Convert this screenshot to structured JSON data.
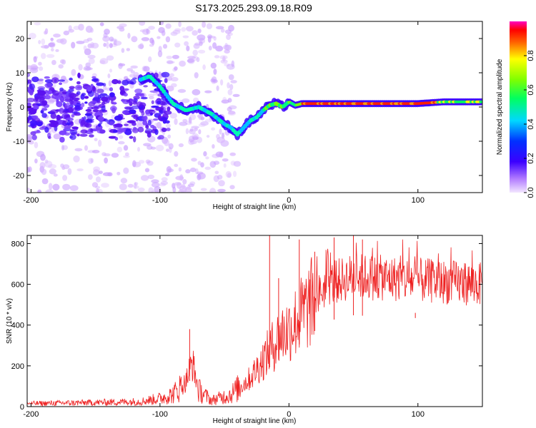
{
  "title": "S173.2025.293.09.18.R09",
  "chart_data": [
    {
      "type": "heatmap",
      "name": "spectrogram",
      "xlabel": "Height of straight line (km)",
      "ylabel": "Frequency (Hz)",
      "xlim": [
        -203,
        150
      ],
      "ylim": [
        -25,
        25
      ],
      "xticks": [
        -200,
        -100,
        0,
        100
      ],
      "yticks": [
        -20,
        -10,
        0,
        10,
        20
      ],
      "colorbar": {
        "label": "Normalized spectral amplitude",
        "range": [
          0,
          1
        ],
        "ticks": [
          0.0,
          0.2,
          0.4,
          0.6,
          0.8
        ],
        "tick_labels": [
          "0.0",
          "0.2",
          "0.4",
          "0.6",
          "0.8"
        ]
      },
      "ridge": {
        "x": [
          -115,
          -108,
          -100,
          -90,
          -80,
          -70,
          -60,
          -50,
          -45,
          -40,
          -35,
          -30,
          -25,
          -20,
          -15,
          -10,
          -5,
          0,
          5,
          10,
          50,
          100,
          120,
          150
        ],
        "y": [
          8,
          9,
          6,
          1,
          -1,
          0,
          -2,
          -5,
          -6,
          -8,
          -6,
          -4,
          -3,
          -1,
          0.5,
          1,
          0,
          1.5,
          0.5,
          1,
          1,
          1,
          1.5,
          1.5
        ]
      },
      "noise_region_x": [
        -203,
        -60
      ],
      "colors": {
        "high": "#ff0000",
        "mid": "#00ff00",
        "low": "#0000ff",
        "floor": "#d9b8ff"
      }
    },
    {
      "type": "line",
      "name": "snr",
      "xlabel": "Height of straight line (km)",
      "ylabel": "SNR (10 * v/v)",
      "xlim": [
        -203,
        150
      ],
      "ylim": [
        0,
        840
      ],
      "xticks": [
        -200,
        -100,
        0,
        100
      ],
      "yticks": [
        0,
        200,
        400,
        600,
        800
      ],
      "color": "#ee2222",
      "envelope": {
        "x": [
          -203,
          -150,
          -115,
          -100,
          -90,
          -80,
          -75,
          -70,
          -60,
          -45,
          -30,
          -20,
          -10,
          -5,
          0,
          10,
          20,
          30,
          50,
          100,
          150
        ],
        "y": [
          15,
          20,
          25,
          40,
          60,
          120,
          220,
          80,
          30,
          60,
          140,
          230,
          320,
          360,
          380,
          450,
          530,
          600,
          640,
          620,
          600
        ]
      },
      "spikes": [
        {
          "x": -77,
          "y": 380
        },
        {
          "x": -15,
          "y": 840
        },
        {
          "x": -8,
          "y": 630
        },
        {
          "x": 8,
          "y": 820
        },
        {
          "x": 20,
          "y": 760
        },
        {
          "x": 35,
          "y": 830
        },
        {
          "x": 50,
          "y": 840
        },
        {
          "x": 57,
          "y": 820
        },
        {
          "x": 98,
          "y": 460
        }
      ]
    }
  ]
}
